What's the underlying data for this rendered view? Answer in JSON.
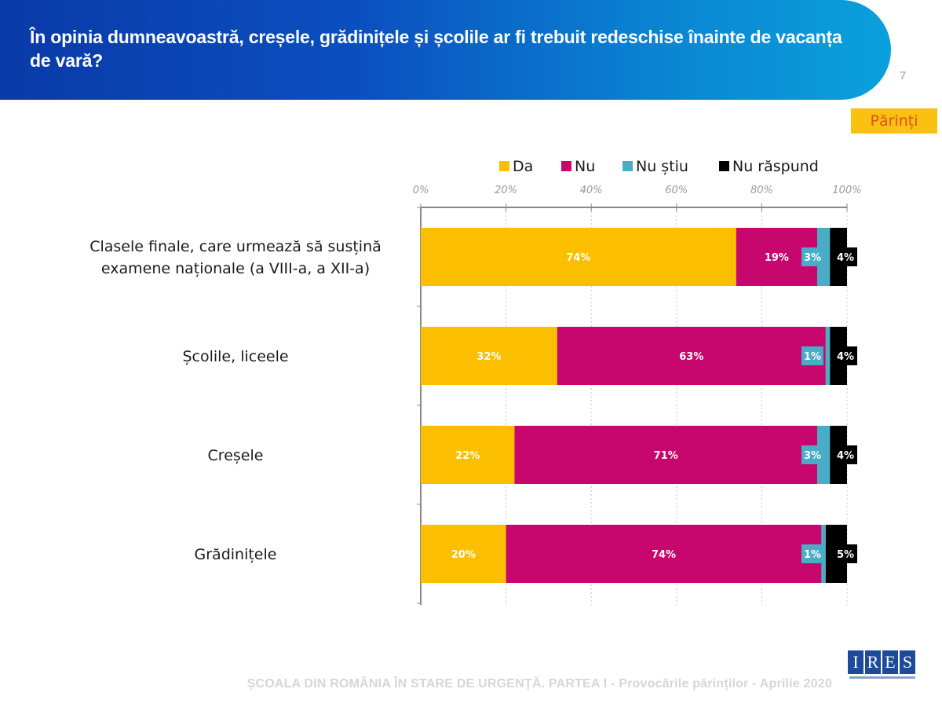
{
  "header": {
    "title": "În opinia dumneavoastră, creșele, grădinițele și școlile ar fi trebuit redeschise înainte de vacanța de vară?",
    "page_number": "7"
  },
  "badge": "Părinți",
  "footer": "ȘCOALA DIN ROMÂNIA ÎN STARE DE URGENȚĂ. PARTEA I - Provocările părinților - Aprilie 2020",
  "logo": {
    "letters": [
      "I",
      "R",
      "E",
      "S"
    ]
  },
  "colors": {
    "Da": "#fbbf00",
    "Nu": "#c8076e",
    "Nu stiu": "#4bacc6",
    "Nu raspund": "#000000",
    "header": "#0a3aa8"
  },
  "chart_data": {
    "type": "bar",
    "orientation": "horizontal",
    "stacked": true,
    "categories": [
      "Clasele finale, care urmează să susțină examene naționale (a VIII-a, a XII-a)",
      "Școlile, liceele",
      "Creșele",
      "Grădinițele"
    ],
    "category_lines": [
      [
        "Clasele finale, care urmează să susțină",
        "examene naționale (a VIII-a, a XII-a)"
      ],
      [
        "Școlile, liceele"
      ],
      [
        "Creșele"
      ],
      [
        "Grădinițele"
      ]
    ],
    "series": [
      {
        "name": "Da",
        "color": "#fbbf00",
        "values": [
          74,
          32,
          22,
          20
        ]
      },
      {
        "name": "Nu",
        "color": "#c8076e",
        "values": [
          19,
          63,
          71,
          74
        ]
      },
      {
        "name": "Nu știu",
        "color": "#4bacc6",
        "values": [
          3,
          1,
          3,
          1
        ]
      },
      {
        "name": "Nu răspund",
        "color": "#000000",
        "values": [
          4,
          4,
          4,
          5
        ]
      }
    ],
    "xlim": [
      0,
      100
    ],
    "xticks": [
      "0%",
      "20%",
      "40%",
      "60%",
      "80%",
      "100%"
    ],
    "grid": true,
    "legend_position": "top",
    "value_suffix": "%"
  }
}
